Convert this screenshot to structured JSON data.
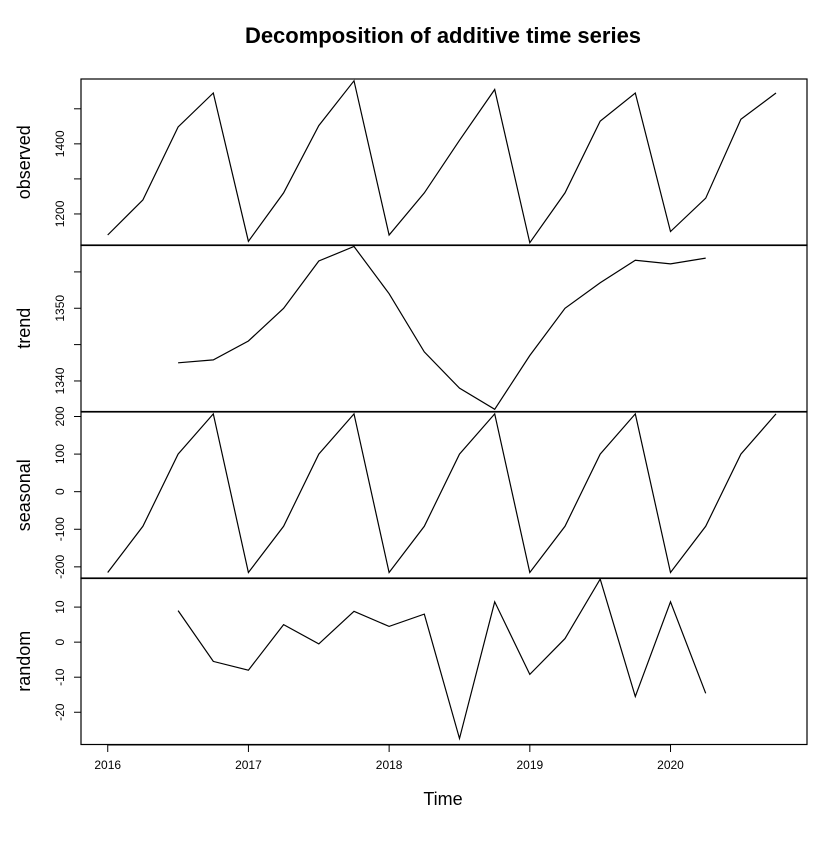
{
  "chart_data": {
    "type": "line",
    "title": "Decomposition of additive time series",
    "xlabel": "Time",
    "x_ticks": [
      2016,
      2017,
      2018,
      2019,
      2020
    ],
    "x": [
      2016.0,
      2016.25,
      2016.5,
      2016.75,
      2017.0,
      2017.25,
      2017.5,
      2017.75,
      2018.0,
      2018.25,
      2018.5,
      2018.75,
      2019.0,
      2019.25,
      2019.5,
      2019.75,
      2020.0,
      2020.25,
      2020.5,
      2020.75
    ],
    "xlim": [
      2015.81,
      2020.97
    ],
    "panels": [
      {
        "name": "observed",
        "ylabel": "observed",
        "ylim": [
          1110,
          1585
        ],
        "y_ticks": [
          1200,
          1300,
          1400,
          1500
        ],
        "y_tick_labels": [
          "1200",
          "",
          "1400",
          ""
        ],
        "values": [
          1140,
          1240,
          1448,
          1545,
          1122,
          1260,
          1452,
          1580,
          1140,
          1260,
          1410,
          1555,
          1118,
          1260,
          1465,
          1545,
          1150,
          1245,
          1470,
          1545
        ]
      },
      {
        "name": "trend",
        "ylabel": "trend",
        "ylim": [
          1335.8,
          1358.7
        ],
        "y_ticks": [
          1340,
          1345,
          1350,
          1355
        ],
        "y_tick_labels": [
          "1340",
          "",
          "1350",
          ""
        ],
        "values": [
          null,
          null,
          1342.5,
          1342.9,
          1345.5,
          1350.0,
          1356.5,
          1358.5,
          1352.0,
          1344.0,
          1339.0,
          1336.1,
          1343.5,
          1350.0,
          1353.5,
          1356.6,
          1356.1,
          1356.9,
          null,
          null
        ]
      },
      {
        "name": "seasonal",
        "ylabel": "seasonal",
        "ylim": [
          -231,
          212
        ],
        "y_ticks": [
          -200,
          -100,
          0,
          100,
          200
        ],
        "y_tick_labels": [
          "-200",
          "-100",
          "0",
          "100",
          "200"
        ],
        "values": [
          -215,
          -92,
          100,
          207,
          -215,
          -92,
          100,
          207,
          -215,
          -92,
          100,
          207,
          -215,
          -92,
          100,
          207,
          -215,
          -92,
          100,
          207
        ]
      },
      {
        "name": "random",
        "ylabel": "random",
        "ylim": [
          -29.2,
          18.3
        ],
        "y_ticks": [
          -20,
          -10,
          0,
          10
        ],
        "y_tick_labels": [
          "-20",
          "-10",
          "0",
          "10"
        ],
        "values": [
          null,
          null,
          9,
          -5.5,
          -8,
          5,
          -0.5,
          8.8,
          4.5,
          8,
          -27.5,
          11.5,
          -9.2,
          1,
          18,
          -15.5,
          11.5,
          -14.6,
          null,
          null
        ]
      }
    ]
  }
}
